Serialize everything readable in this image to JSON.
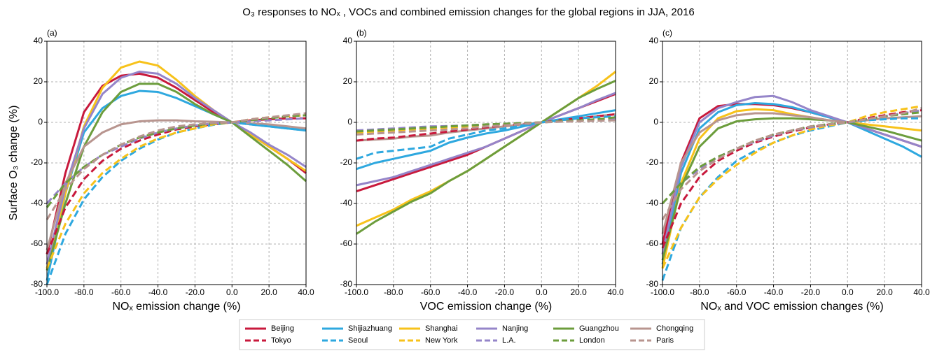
{
  "title": "O₃ responses to NOₓ , VOCs and combined emission changes for the global regions in JJA, 2016",
  "chart_data": [
    {
      "type": "line",
      "title": "(a)",
      "xlabel": "NOₓ emission change (%)",
      "ylabel": "Surface O₃ change (%)",
      "x": [
        -100,
        -90,
        -80,
        -70,
        -60,
        -50,
        -40,
        -30,
        -20,
        -10,
        0,
        10,
        20,
        30,
        40
      ],
      "xlim": [
        -100,
        40
      ],
      "ylim": [
        -80,
        40
      ],
      "grid": true,
      "xticks": [
        {
          "value": -100,
          "label": "-100.0"
        },
        {
          "value": -80,
          "label": "-80.0"
        },
        {
          "value": -60,
          "label": "-60.0"
        },
        {
          "value": -40,
          "label": "-40.0"
        },
        {
          "value": -20,
          "label": "-20.0"
        },
        {
          "value": 0,
          "label": "0.0"
        },
        {
          "value": 20,
          "label": "20.0"
        },
        {
          "value": 40,
          "label": "40.0"
        }
      ],
      "yticks": [
        -80,
        -60,
        -40,
        -20,
        0,
        20,
        40
      ],
      "series": [
        {
          "name": "Beijing",
          "color": "#c8193c",
          "dashed": false,
          "values": [
            -65,
            -25,
            5,
            18,
            23,
            24,
            22,
            17,
            11,
            5,
            0,
            -6,
            -12,
            -18,
            -25
          ]
        },
        {
          "name": "Shijiazhuang",
          "color": "#2ea8df",
          "dashed": false,
          "values": [
            -78,
            -35,
            -5,
            7,
            13,
            15.5,
            15,
            12,
            8,
            4,
            0,
            -1,
            -2,
            -3,
            -4
          ]
        },
        {
          "name": "Shanghai",
          "color": "#f7c21a",
          "dashed": false,
          "values": [
            -72,
            -35,
            -2,
            17,
            27,
            30,
            28,
            21,
            13,
            6,
            0,
            -6,
            -12,
            -18,
            -24
          ]
        },
        {
          "name": "Nanjing",
          "color": "#9585c9",
          "dashed": false,
          "values": [
            -70,
            -32,
            -3,
            14,
            22,
            25,
            24,
            19,
            12,
            6,
            0,
            -5,
            -11,
            -16,
            -22
          ]
        },
        {
          "name": "Guangzhou",
          "color": "#6c9d3c",
          "dashed": false,
          "values": [
            -73,
            -40,
            -12,
            5,
            15,
            19,
            19,
            15,
            9,
            4,
            0,
            -7,
            -14,
            -21,
            -29
          ]
        },
        {
          "name": "Chongqing",
          "color": "#b8958f",
          "dashed": false,
          "values": [
            -63,
            -30,
            -12,
            -5,
            -1,
            0.5,
            1,
            1,
            0.5,
            0.3,
            0,
            -0.5,
            -1,
            -2,
            -3
          ]
        },
        {
          "name": "Tokyo",
          "color": "#c8193c",
          "dashed": true,
          "values": [
            -65,
            -42,
            -28,
            -19,
            -13,
            -9,
            -6,
            -3.5,
            -2,
            -1,
            0,
            1,
            1.5,
            2,
            2
          ]
        },
        {
          "name": "Seoul",
          "color": "#2ea8df",
          "dashed": true,
          "values": [
            -80,
            -55,
            -38,
            -27,
            -19,
            -13,
            -8.5,
            -5,
            -3,
            -1.2,
            0,
            -1,
            -2,
            -3,
            -4
          ]
        },
        {
          "name": "New York",
          "color": "#f7c21a",
          "dashed": true,
          "values": [
            -72,
            -50,
            -35,
            -25,
            -18,
            -12,
            -8,
            -5,
            -3,
            -1,
            0,
            1.5,
            2.5,
            3,
            3.5
          ]
        },
        {
          "name": "L.A.",
          "color": "#9585c9",
          "dashed": true,
          "values": [
            -40,
            -30,
            -22,
            -16,
            -12,
            -8,
            -5,
            -3,
            -1.5,
            -0.5,
            0,
            0.5,
            1,
            1.5,
            2
          ]
        },
        {
          "name": "London",
          "color": "#6c9d3c",
          "dashed": true,
          "values": [
            -42,
            -30,
            -22,
            -16,
            -11,
            -7.5,
            -5,
            -3,
            -1.5,
            -0.5,
            0,
            1,
            2,
            3,
            3.5
          ]
        },
        {
          "name": "Paris",
          "color": "#b8958f",
          "dashed": true,
          "values": [
            -48,
            -33,
            -23,
            -16,
            -11,
            -7,
            -4,
            -2,
            -1,
            -0.3,
            0,
            1.5,
            2.5,
            3.5,
            4.5
          ]
        }
      ]
    },
    {
      "type": "line",
      "title": "(b)",
      "xlabel": "VOC emission change (%)",
      "x": [
        -100,
        -90,
        -80,
        -70,
        -60,
        -50,
        -40,
        -30,
        -20,
        -10,
        0,
        10,
        20,
        30,
        40
      ],
      "xlim": [
        -100,
        40
      ],
      "ylim": [
        -80,
        40
      ],
      "grid": true,
      "xticks": [
        {
          "value": -100,
          "label": "-100.0"
        },
        {
          "value": -80,
          "label": "-80.0"
        },
        {
          "value": -60,
          "label": "-60.0"
        },
        {
          "value": -40,
          "label": "-40.0"
        },
        {
          "value": -20,
          "label": "-20.0"
        },
        {
          "value": 0,
          "label": "0.0"
        },
        {
          "value": 20,
          "label": "20.0"
        },
        {
          "value": 40,
          "label": "40.0"
        }
      ],
      "yticks": [
        -80,
        -60,
        -40,
        -20,
        0,
        20,
        40
      ],
      "series": [
        {
          "color": "#c8193c",
          "dashed": false,
          "values": [
            -34,
            -31,
            -28,
            -25,
            -22,
            -19,
            -16,
            -12,
            -8,
            -4,
            0,
            3.5,
            7,
            10.5,
            14
          ]
        },
        {
          "color": "#2ea8df",
          "dashed": false,
          "values": [
            -23,
            -20,
            -18,
            -16,
            -14,
            -10,
            -7.5,
            -5.5,
            -4,
            -2,
            0,
            1.5,
            3,
            4.5,
            6
          ]
        },
        {
          "color": "#f7c21a",
          "dashed": false,
          "values": [
            -51,
            -47,
            -43,
            -38,
            -34,
            -29,
            -24,
            -18,
            -12,
            -6,
            0,
            6,
            12,
            18,
            25
          ]
        },
        {
          "color": "#9585c9",
          "dashed": false,
          "values": [
            -31,
            -29,
            -27,
            -24,
            -21,
            -18,
            -15,
            -12,
            -8,
            -4,
            0,
            3.5,
            7,
            11,
            14.5
          ]
        },
        {
          "color": "#6c9d3c",
          "dashed": false,
          "values": [
            -55,
            -49,
            -44,
            -39,
            -35,
            -29,
            -24,
            -18,
            -12,
            -6,
            0,
            6,
            12,
            16.5,
            20.5
          ]
        },
        {
          "color": "#b8958f",
          "dashed": false,
          "values": [
            -9,
            -8.5,
            -8,
            -7,
            -6.5,
            -5,
            -4,
            -3,
            -2,
            -1,
            0,
            1,
            2,
            3,
            4
          ]
        },
        {
          "color": "#c8193c",
          "dashed": true,
          "values": [
            -9,
            -8,
            -7.5,
            -6.5,
            -5.5,
            -4.5,
            -3.5,
            -2.5,
            -1.5,
            -0.7,
            0,
            1,
            2,
            3,
            4
          ]
        },
        {
          "color": "#2ea8df",
          "dashed": true,
          "values": [
            -18,
            -15,
            -14,
            -13,
            -12,
            -8,
            -6,
            -4,
            -3,
            -1.5,
            0,
            1,
            2,
            2.5,
            3
          ]
        },
        {
          "color": "#f7c21a",
          "dashed": true,
          "values": [
            -5,
            -4.5,
            -4,
            -3.5,
            -3,
            -2.5,
            -2,
            -1.5,
            -1,
            -0.5,
            0,
            0.5,
            1,
            1.5,
            2
          ]
        },
        {
          "color": "#9585c9",
          "dashed": true,
          "values": [
            -4,
            -3.5,
            -3,
            -2.5,
            -2,
            -1.8,
            -1.5,
            -1,
            -0.7,
            -0.3,
            0,
            0.5,
            1,
            1.5,
            2
          ]
        },
        {
          "color": "#6c9d3c",
          "dashed": true,
          "values": [
            -4.5,
            -4,
            -3.5,
            -3,
            -2.5,
            -2,
            -1.5,
            -1,
            -0.7,
            -0.3,
            0,
            0.5,
            1,
            1.5,
            2.5
          ]
        },
        {
          "color": "#b8958f",
          "dashed": true,
          "values": [
            -6,
            -5.5,
            -5,
            -4.5,
            -4,
            -3.5,
            -3,
            -2,
            -1.5,
            -0.7,
            0,
            0.3,
            0.5,
            0.8,
            1
          ]
        }
      ]
    },
    {
      "type": "line",
      "title": "(c)",
      "xlabel": "NOₓ and VOC emission changes (%)",
      "x": [
        -100,
        -90,
        -80,
        -70,
        -60,
        -50,
        -40,
        -30,
        -20,
        -10,
        0,
        10,
        20,
        30,
        40
      ],
      "xlim": [
        -100,
        40
      ],
      "ylim": [
        -80,
        40
      ],
      "grid": true,
      "xticks": [
        {
          "value": -100,
          "label": "-100.0"
        },
        {
          "value": -80,
          "label": "-80.0"
        },
        {
          "value": -60,
          "label": "-60.0"
        },
        {
          "value": -40,
          "label": "-40.0"
        },
        {
          "value": -20,
          "label": "-20.0"
        },
        {
          "value": 0,
          "label": "0.0"
        },
        {
          "value": 20,
          "label": "20.0"
        },
        {
          "value": 40,
          "label": "40.0"
        }
      ],
      "yticks": [
        -80,
        -60,
        -40,
        -20,
        0,
        20,
        40
      ],
      "series": [
        {
          "color": "#c8193c",
          "dashed": false,
          "values": [
            -60,
            -20,
            2,
            8,
            9,
            9,
            8.5,
            7,
            5,
            2.5,
            0,
            -3,
            -6,
            -9,
            -12
          ]
        },
        {
          "color": "#2ea8df",
          "dashed": false,
          "values": [
            -70,
            -25,
            -3,
            5,
            8.5,
            9.5,
            9,
            7.5,
            5,
            2.5,
            0,
            -4,
            -8,
            -12,
            -17
          ]
        },
        {
          "color": "#f7c21a",
          "dashed": false,
          "values": [
            -72,
            -30,
            -8,
            2,
            5.5,
            6.5,
            6,
            4,
            2.5,
            1,
            0,
            -1,
            -2,
            -3,
            -4
          ]
        },
        {
          "color": "#9585c9",
          "dashed": false,
          "values": [
            -65,
            -22,
            0,
            7,
            10,
            12.5,
            13,
            10,
            6,
            3,
            0,
            -3,
            -6,
            -9,
            -12
          ]
        },
        {
          "color": "#6c9d3c",
          "dashed": false,
          "values": [
            -68,
            -32,
            -12,
            -3,
            0.5,
            1.5,
            2,
            2,
            1.5,
            1,
            0,
            -2,
            -4,
            -6.5,
            -9
          ]
        },
        {
          "color": "#b8958f",
          "dashed": false,
          "values": [
            -55,
            -20,
            -5,
            1,
            3.5,
            4.5,
            4.5,
            3.5,
            2.5,
            1,
            0,
            1,
            2,
            2.5,
            3
          ]
        },
        {
          "color": "#c8193c",
          "dashed": true,
          "values": [
            -62,
            -40,
            -27,
            -19,
            -14,
            -10,
            -7,
            -4.5,
            -2.5,
            -1,
            0,
            2,
            3.5,
            5,
            6
          ]
        },
        {
          "color": "#2ea8df",
          "dashed": true,
          "values": [
            -78,
            -52,
            -37,
            -27,
            -19,
            -14,
            -10,
            -6.5,
            -4,
            -2,
            0,
            1,
            1.5,
            2,
            2
          ]
        },
        {
          "color": "#f7c21a",
          "dashed": true,
          "values": [
            -72,
            -52,
            -37,
            -28,
            -21,
            -15,
            -10,
            -6.5,
            -3.5,
            -1.5,
            0,
            3,
            5,
            6.5,
            8
          ]
        },
        {
          "color": "#9585c9",
          "dashed": true,
          "values": [
            -40,
            -30,
            -23,
            -17,
            -13,
            -9.5,
            -6.5,
            -4,
            -2.5,
            -1,
            0,
            1.5,
            3,
            4.5,
            6
          ]
        },
        {
          "color": "#6c9d3c",
          "dashed": true,
          "values": [
            -40,
            -30,
            -22,
            -17,
            -13,
            -9,
            -6,
            -4,
            -2,
            -0.8,
            0,
            1.5,
            3,
            4,
            5
          ]
        },
        {
          "color": "#b8958f",
          "dashed": true,
          "values": [
            -48,
            -33,
            -24,
            -18,
            -13,
            -9,
            -6,
            -4,
            -2,
            -1,
            0,
            1.5,
            3,
            4.5,
            7
          ]
        }
      ]
    }
  ]
}
